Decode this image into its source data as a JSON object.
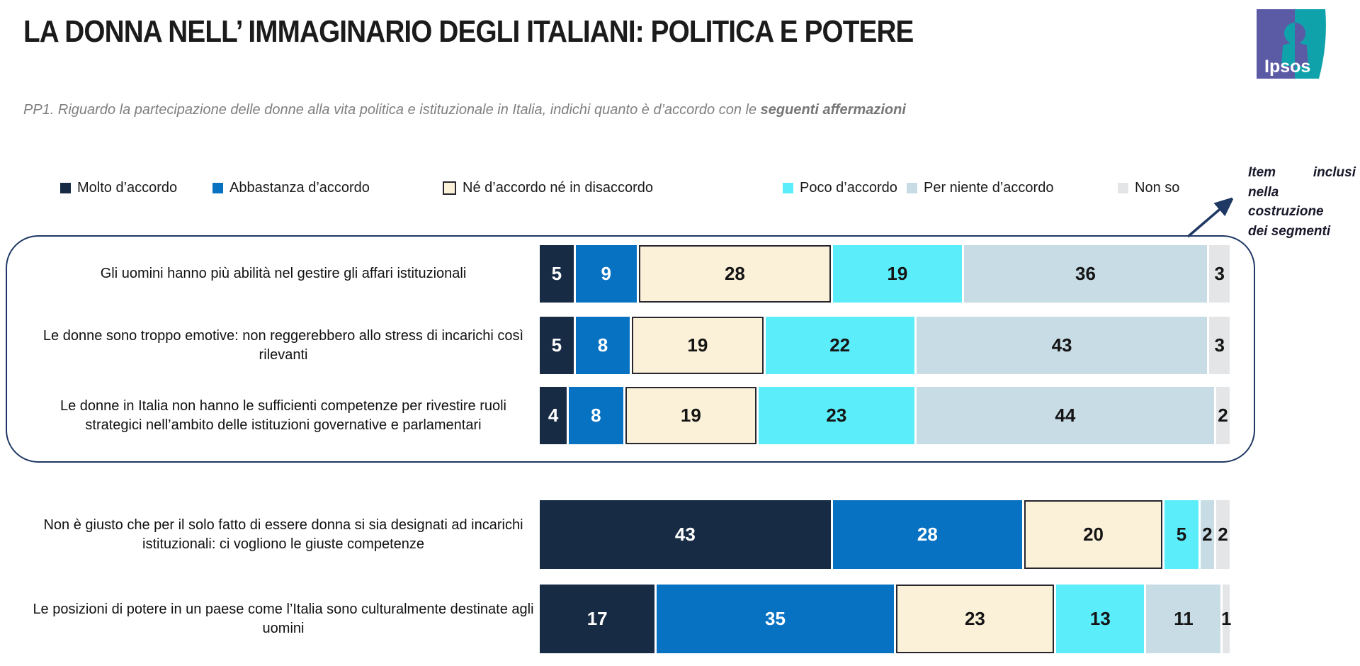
{
  "header": {
    "title": "LA DONNA NELL’ IMMAGINARIO DEGLI ITALIANI: POLITICA E POTERE",
    "question_prefix": "PP1. Riguardo la partecipazione delle donne alla vita politica e istituzionale in Italia, indichi quanto è d’accordo con le ",
    "question_bold": "seguenti affermazioni"
  },
  "logo": {
    "brand": "Ipsos",
    "purple": "#5B5AA5",
    "teal": "#0FA2AB"
  },
  "legend": [
    {
      "label": "Molto d’accordo",
      "color": "#182B44",
      "bordered": false
    },
    {
      "label": "Abbastanza d’accordo",
      "color": "#0872C2",
      "bordered": false
    },
    {
      "label": "Né d’accordo né in disaccordo",
      "color": "#FBF0D8",
      "bordered": true
    },
    {
      "label": "Poco d’accordo",
      "color": "#5CEDFB",
      "bordered": false
    },
    {
      "label": "Per niente d’accordo",
      "color": "#C8DCE6",
      "bordered": false
    },
    {
      "label": "Non so",
      "color": "#E4E5E6",
      "bordered": false
    }
  ],
  "annotation": {
    "line1_left": "Item",
    "line1_right": "inclusi",
    "line2": "nella",
    "line3": "costruzione",
    "line4": "dei segmenti"
  },
  "chart_data": {
    "type": "bar",
    "variant": "horizontal-stacked-100pct",
    "unit": "%",
    "xlim": [
      0,
      100
    ],
    "title": "LA DONNA NELL’ IMMAGINARIO DEGLI ITALIANI: POLITICA E POTERE",
    "question": "PP1. Riguardo la partecipazione delle donne alla vita politica e istituzionale in Italia, indichi quanto è d’accordo con le seguenti affermazioni",
    "legend_position": "top",
    "series": [
      "Molto d’accordo",
      "Abbastanza d’accordo",
      "Né d’accordo né in disaccordo",
      "Poco d’accordo",
      "Per niente d’accordo",
      "Non so"
    ],
    "series_colors": [
      "#182B44",
      "#0872C2",
      "#FBF0D8",
      "#5CEDFB",
      "#C8DCE6",
      "#E4E5E6"
    ],
    "rows": [
      {
        "label": "Gli uomini hanno più abilità nel gestire gli affari istituzionali",
        "values": [
          5,
          9,
          28,
          19,
          36,
          3
        ],
        "in_segment_box": true
      },
      {
        "label": "Le donne sono troppo emotive: non reggerebbero allo stress di incarichi così rilevanti",
        "values": [
          5,
          8,
          19,
          22,
          43,
          3
        ],
        "in_segment_box": true
      },
      {
        "label": "Le donne in Italia non hanno le sufficienti competenze per rivestire ruoli strategici nell’ambito delle istituzioni governative e parlamentari",
        "values": [
          4,
          8,
          19,
          23,
          44,
          2
        ],
        "in_segment_box": true
      },
      {
        "label": "Non è giusto che per il solo fatto di essere donna si sia designati ad incarichi istituzionali: ci vogliono le giuste competenze",
        "values": [
          43,
          28,
          20,
          5,
          2,
          2
        ],
        "in_segment_box": false
      },
      {
        "label": "Le posizioni di potere in un paese come l’Italia sono culturalmente destinate agli uomini",
        "values": [
          17,
          35,
          23,
          13,
          11,
          1
        ],
        "in_segment_box": false
      }
    ]
  }
}
